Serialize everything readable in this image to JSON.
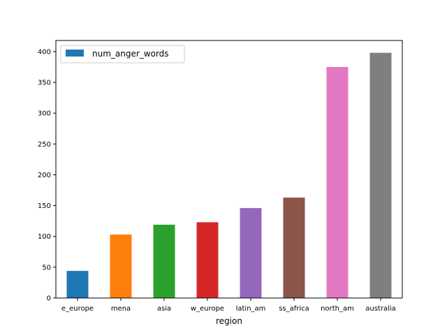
{
  "chart_data": {
    "type": "bar",
    "title": "",
    "xlabel": "region",
    "ylabel": "",
    "categories": [
      "e_europe",
      "mena",
      "asia",
      "w_europe",
      "latin_am",
      "ss_africa",
      "north_am",
      "australia"
    ],
    "series": [
      {
        "name": "num_anger_words",
        "values": [
          44,
          103,
          119,
          123,
          146,
          163,
          375,
          398
        ]
      }
    ],
    "bar_colors": [
      "#1f77b4",
      "#ff7f0e",
      "#2ca02c",
      "#d62728",
      "#9467bd",
      "#8c564b",
      "#e377c2",
      "#7f7f7f"
    ],
    "legend_color": "#1f77b4",
    "yticks": [
      0,
      50,
      100,
      150,
      200,
      250,
      300,
      350,
      400
    ],
    "ylim": [
      0,
      418
    ],
    "grid": false,
    "legend_position": "top-left"
  }
}
